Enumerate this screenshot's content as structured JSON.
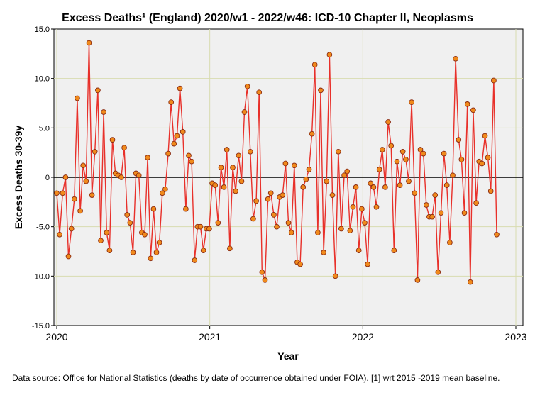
{
  "chart_data": {
    "type": "line",
    "title": "Excess Deaths¹ (England) 2020/w1 - 2022/w46: ICD-10 Chapter II, Neoplasms",
    "xlabel": "Year",
    "ylabel": "Excess Deaths 30-39y",
    "ylim": [
      -15,
      15
    ],
    "yticks": [
      "15.0",
      "10.0",
      "5.0",
      "0",
      "-5.0",
      "-10.0",
      "-15.0"
    ],
    "ytick_values": [
      15,
      10,
      5,
      0,
      -5,
      -10,
      -15
    ],
    "xlim": [
      2020,
      2023
    ],
    "xticks": [
      "2020",
      "2021",
      "2022",
      "2023"
    ],
    "xtick_values": [
      2020,
      2021,
      2022,
      2023
    ],
    "grid": true,
    "reference_line": 0,
    "series": [
      {
        "x_start": 2020.0,
        "x_step": 0.019165,
        "values": [
          -1.6,
          -5.8,
          -1.6,
          0.0,
          -8.0,
          -5.2,
          -2.2,
          8.0,
          -3.4,
          1.2,
          -0.4,
          13.6,
          -1.8,
          2.6,
          8.8,
          -6.4,
          6.6,
          -5.6,
          -7.4,
          3.8,
          0.4,
          0.2,
          0.0,
          3.0,
          -3.8,
          -4.6,
          -7.6,
          0.4,
          0.2,
          -5.6,
          -5.8,
          2.0,
          -8.2,
          -3.2,
          -7.6,
          -6.6,
          -1.6,
          -1.2,
          2.4,
          7.6,
          3.4,
          4.2,
          9.0,
          4.6,
          -3.2,
          2.2,
          1.6,
          -8.4,
          -5.0,
          -5.0,
          -7.4,
          -5.2,
          -5.2,
          -0.6,
          -0.8,
          -4.6,
          1.0,
          -1.0,
          2.8,
          -7.2,
          1.0,
          -1.4,
          2.2,
          -0.4,
          6.6,
          9.2,
          2.6,
          -4.2,
          -2.4,
          8.6,
          -9.6,
          -10.4,
          -2.2,
          -1.6,
          -3.8,
          -5.0,
          -2.0,
          -1.8,
          1.4,
          -4.6,
          -5.6,
          1.2,
          -8.6,
          -8.8,
          -1.0,
          -0.2,
          0.8,
          4.4,
          11.4,
          -5.6,
          8.8,
          -7.6,
          -0.4,
          12.4,
          -1.8,
          -10.0,
          2.6,
          -5.2,
          0.2,
          0.6,
          -5.4,
          -3.0,
          -1.0,
          -7.4,
          -3.2,
          -4.6,
          -8.8,
          -0.6,
          -1.0,
          -3.0,
          0.8,
          2.8,
          -1.0,
          5.6,
          3.2,
          -7.4,
          1.6,
          -0.8,
          2.6,
          1.8,
          -0.4,
          7.6,
          -1.6,
          -10.4,
          2.8,
          2.4,
          -2.8,
          -4.0,
          -4.0,
          -1.8,
          -9.6,
          -3.6,
          2.4,
          -0.8,
          -6.6,
          0.2,
          12.0,
          3.8,
          1.8,
          -3.6,
          7.4,
          -10.6,
          6.8,
          -2.6,
          1.6,
          1.4,
          4.2,
          2.0,
          -1.4,
          9.8,
          -5.8
        ],
        "line_color": "#e8302a",
        "marker_fill": "#f08a1c",
        "marker_edge": "#8a2a10"
      }
    ]
  },
  "footnote": "Data source: Office for National Statistics (deaths by date of occurrence obtained under FOIA). [1] wrt 2015 -2019 mean baseline."
}
